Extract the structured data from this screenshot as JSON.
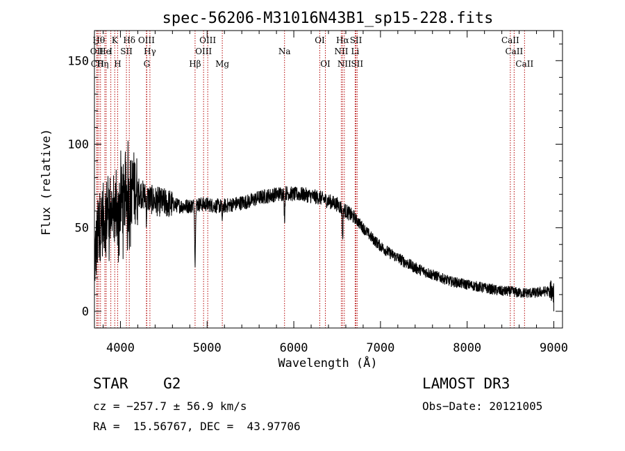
{
  "chart_data": {
    "type": "line",
    "title": "spec-56206-M31016N43B1_sp15-228.fits",
    "xlabel": "Wavelength (Å)",
    "ylabel": "Flux (relative)",
    "xlim": [
      3700,
      9100
    ],
    "ylim": [
      -10,
      168
    ],
    "x_ticks": [
      4000,
      5000,
      6000,
      7000,
      8000,
      9000
    ],
    "y_ticks": [
      0,
      50,
      100,
      150
    ],
    "x_tick_labels": [
      "4000",
      "5000",
      "6000",
      "7000",
      "8000",
      "9000"
    ],
    "y_tick_labels": [
      "0",
      "50",
      "100",
      "150"
    ],
    "spectrum_trend": {
      "x": [
        3700,
        3750,
        3800,
        3850,
        3900,
        3950,
        4000,
        4050,
        4100,
        4150,
        4200,
        4300,
        4400,
        4500,
        4600,
        4700,
        4800,
        4900,
        5000,
        5100,
        5200,
        5300,
        5400,
        5500,
        5600,
        5700,
        5800,
        5900,
        6000,
        6100,
        6200,
        6300,
        6400,
        6500,
        6600,
        6700,
        6800,
        6900,
        7000,
        7100,
        7200,
        7300,
        7400,
        7500,
        7600,
        7700,
        7800,
        7900,
        8000,
        8100,
        8200,
        8300,
        8400,
        8500,
        8600,
        8700,
        8800,
        8900,
        9000
      ],
      "y": [
        30,
        50,
        55,
        60,
        62,
        63,
        65,
        68,
        70,
        75,
        72,
        68,
        66,
        65,
        64,
        63,
        63,
        64,
        64,
        63,
        63,
        64,
        65,
        66,
        68,
        69,
        70,
        71,
        70,
        70,
        69,
        68,
        66,
        64,
        60,
        56,
        50,
        44,
        39,
        35,
        32,
        29,
        26,
        24,
        22,
        20,
        18,
        17,
        16,
        15,
        14,
        13,
        12,
        12,
        11,
        11,
        11,
        12,
        12
      ]
    },
    "absorption_features": [
      {
        "x": 3934,
        "depth": 20
      },
      {
        "x": 3968,
        "depth": 18
      },
      {
        "x": 4102,
        "depth": 12
      },
      {
        "x": 4300,
        "depth": 10
      },
      {
        "x": 4861,
        "depth": 35
      },
      {
        "x": 5175,
        "depth": 8
      },
      {
        "x": 5893,
        "depth": 15
      },
      {
        "x": 6563,
        "depth": 18
      }
    ],
    "spectral_lines": [
      {
        "name": "OII",
        "x": 3727,
        "row": 2
      },
      {
        "name": "CII",
        "x": 3733,
        "row": 3
      },
      {
        "name": "Hθ",
        "x": 3750,
        "row": 1
      },
      {
        "name": "H",
        "x": 3770,
        "row": 3
      },
      {
        "name": "He",
        "x": 3820,
        "row": 2
      },
      {
        "name": "η",
        "x": 3835,
        "row": 3
      },
      {
        "name": "I",
        "x": 3889,
        "row": 2
      },
      {
        "name": "K",
        "x": 3934,
        "row": 1
      },
      {
        "name": "H",
        "x": 3968,
        "row": 3
      },
      {
        "name": "SII",
        "x": 4069,
        "row": 2
      },
      {
        "name": "Hδ",
        "x": 4102,
        "row": 1
      },
      {
        "name": "OIII",
        "x": 4300,
        "row": 1
      },
      {
        "name": "Hγ",
        "x": 4340,
        "row": 2
      },
      {
        "name": "G",
        "x": 4304,
        "row": 3
      },
      {
        "name": "Hβ",
        "x": 4861,
        "row": 3
      },
      {
        "name": "OIII",
        "x": 4959,
        "row": 2
      },
      {
        "name": "OIII",
        "x": 5007,
        "row": 1
      },
      {
        "name": "Mg",
        "x": 5175,
        "row": 3
      },
      {
        "name": "Na",
        "x": 5893,
        "row": 2
      },
      {
        "name": "OI",
        "x": 6300,
        "row": 1
      },
      {
        "name": "OI",
        "x": 6364,
        "row": 3
      },
      {
        "name": "Hα",
        "x": 6563,
        "row": 1
      },
      {
        "name": "NII",
        "x": 6548,
        "row": 2
      },
      {
        "name": "NII",
        "x": 6583,
        "row": 3
      },
      {
        "name": "SII",
        "x": 6717,
        "row": 1
      },
      {
        "name": "Li",
        "x": 6708,
        "row": 2
      },
      {
        "name": "SII",
        "x": 6731,
        "row": 3
      },
      {
        "name": "CaII",
        "x": 8498,
        "row": 1
      },
      {
        "name": "CaII",
        "x": 8542,
        "row": 2
      },
      {
        "name": "CaII",
        "x": 8662,
        "row": 3
      }
    ]
  },
  "info": {
    "class_label": "STAR",
    "subclass": "G2",
    "survey": "LAMOST DR3",
    "redshift": "cz = −257.7 ± 56.9 km/s",
    "obs_date": "Obs−Date: 20121005",
    "coords": "RA =  15.56767, DEC =  43.97706"
  },
  "colors": {
    "spectrum": "#000000",
    "line_markers": "#b30000",
    "axes": "#000000"
  }
}
